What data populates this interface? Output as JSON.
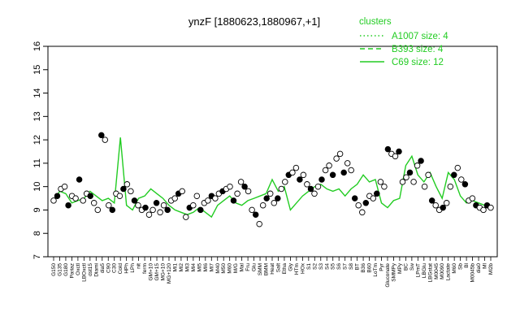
{
  "chart_data": {
    "type": "line",
    "title": "ynzF [1880623,1880967,+1]",
    "xlabel": "",
    "ylabel": "",
    "ylim": [
      7,
      16
    ],
    "yticks": [
      7,
      8,
      9,
      10,
      11,
      12,
      13,
      14,
      15,
      16
    ],
    "legend": {
      "title": "clusters",
      "placement": "top-right",
      "entries": [
        {
          "label": "A1007 size: 4",
          "style": "dotted"
        },
        {
          "label": "B393 size: 4",
          "style": "dashed"
        },
        {
          "label": "C69 size: 12",
          "style": "solid"
        }
      ]
    },
    "categories": [
      "G150",
      "G135",
      "G180",
      "Pariaz",
      "Oxctl",
      "LBOxctl",
      "dst15",
      "Diami",
      "dia5",
      "C90",
      "C30",
      "Cold",
      "HPh",
      "LPh",
      "nit",
      "ferm",
      "GM+10",
      "GM+15",
      "MG+10",
      "MG+120",
      "Ml1",
      "Ml2",
      "Ml3",
      "Ml4",
      "Ml5",
      "Ml6",
      "Ml7",
      "M40",
      "M50",
      "M60",
      "M/G",
      "Mal",
      "Fru",
      "Glu",
      "SMM",
      "BMM",
      "Heat",
      "Salt",
      "Etha",
      "Gly",
      "HTm",
      "HOx",
      "S1",
      "S2",
      "S3",
      "S4",
      "S5",
      "S6",
      "S7",
      "S8",
      "BT",
      "B36",
      "B60",
      "LoTm",
      "Pyr",
      "Gluconate",
      "SMMPy",
      "MPy",
      "BC",
      "Sw",
      "LPmT",
      "LBGlu",
      "LBGstat",
      "M0045",
      "M0090",
      "Lactate",
      "M60",
      "Sb",
      "Bl",
      "M0045b",
      "dia0",
      "Ml",
      "Ml2b"
    ],
    "series": [
      {
        "name": "C69 size: 12",
        "color": "#22cc22",
        "values": [
          9.4,
          9.8,
          9.7,
          9.3,
          9.4,
          9.5,
          9.8,
          9.6,
          9.4,
          9.5,
          9.3,
          12.1,
          9.2,
          9.0,
          9.5,
          9.6,
          9.9,
          9.7,
          9.5,
          9.2,
          9.0,
          8.9,
          8.8,
          8.9,
          9.1,
          8.9,
          8.7,
          9.2,
          9.4,
          9.6,
          9.3,
          9.2,
          9.4,
          9.5,
          9.6,
          9.7,
          10.3,
          9.8,
          10.0,
          9.0,
          9.3,
          9.6,
          9.8,
          10.0,
          10.1,
          9.9,
          9.8,
          9.9,
          9.6,
          9.9,
          10.1,
          10.5,
          10.2,
          10.3,
          9.3,
          9.1,
          9.4,
          9.5,
          10.9,
          11.3,
          10.5,
          10.2,
          10.6,
          10.0,
          9.5,
          10.6,
          10.3,
          9.6,
          9.3,
          9.4,
          9.3,
          9.2,
          9.2
        ]
      }
    ],
    "points": [
      9.4,
      9.6,
      9.9,
      10.0,
      9.2,
      9.6,
      9.5,
      10.3,
      9.4,
      9.7,
      9.6,
      9.3,
      9.0,
      12.2,
      12.0,
      9.2,
      9.0,
      9.7,
      9.6,
      9.9,
      10.1,
      9.8,
      9.4,
      9.2,
      9.0,
      9.1,
      8.8,
      9.0,
      9.3,
      8.9,
      9.2,
      9.0,
      9.4,
      9.5,
      9.7,
      9.8,
      8.7,
      9.1,
      9.2,
      9.6,
      9.0,
      9.3,
      9.4,
      9.6,
      9.5,
      9.7,
      9.8,
      9.9,
      10.0,
      9.4,
      9.7,
      10.2,
      10.0,
      9.8,
      9.0,
      8.8,
      8.4,
      9.2,
      9.5,
      9.7,
      9.3,
      9.5,
      9.9,
      10.2,
      10.5,
      10.6,
      10.8,
      10.3,
      10.5,
      10.1,
      9.9,
      9.7,
      10.0,
      10.3,
      10.7,
      10.9,
      10.5,
      11.2,
      11.4,
      10.6,
      11.0,
      10.7,
      9.5,
      9.2,
      8.9,
      9.3,
      9.6,
      9.5,
      9.7,
      10.2,
      10.0,
      11.6,
      11.4,
      11.3,
      11.5,
      10.2,
      10.4,
      10.6,
      10.2,
      10.9,
      11.1,
      10.0,
      10.5,
      9.4,
      9.2,
      9.0,
      9.1,
      9.3,
      10.0,
      10.5,
      10.8,
      10.3,
      10.1,
      9.4,
      9.5,
      9.2,
      9.1,
      9.0,
      9.2,
      9.1
    ]
  }
}
